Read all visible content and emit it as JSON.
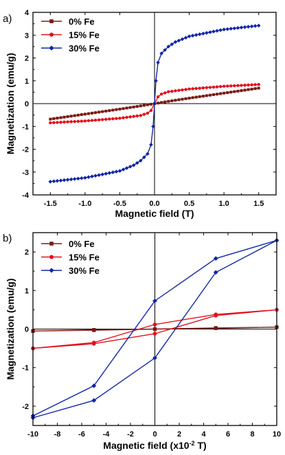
{
  "colors": {
    "s0": "#7a1a14",
    "s15": "#e3101d",
    "s30": "#1025a6"
  },
  "chart_data": [
    {
      "panel": "a)",
      "type": "line",
      "xlabel": "Magnetic field (T)",
      "ylabel": "Magnetization (emu/g)",
      "xlim": [
        -1.75,
        1.75
      ],
      "ylim": [
        -4,
        4
      ],
      "xticks": [
        "-1.5",
        "-1.0",
        "-0.5",
        "0.0",
        "0.5",
        "1.0",
        "1.5"
      ],
      "xtick_values": [
        -1.5,
        -1.0,
        -0.5,
        0.0,
        0.5,
        1.0,
        1.5
      ],
      "yticks": [
        "-4",
        "-3",
        "-2",
        "-1",
        "0",
        "1",
        "2",
        "3",
        "4"
      ],
      "ytick_values": [
        -4,
        -3,
        -2,
        -1,
        0,
        1,
        2,
        3,
        4
      ],
      "legend_position": "top-left",
      "series": [
        {
          "name": "0% Fe",
          "marker": "square",
          "color_key": "s0",
          "x": [
            -1.5,
            -1.0,
            -0.5,
            -0.2,
            0.0,
            0.2,
            0.5,
            1.0,
            1.5
          ],
          "y": [
            -0.68,
            -0.46,
            -0.24,
            -0.1,
            0.0,
            0.1,
            0.24,
            0.46,
            0.68
          ]
        },
        {
          "name": "15% Fe",
          "marker": "circle",
          "color_key": "s15",
          "x": [
            -1.5,
            -1.0,
            -0.5,
            -0.2,
            -0.1,
            -0.05,
            0.0,
            0.05,
            0.1,
            0.2,
            0.5,
            1.0,
            1.5
          ],
          "y": [
            -0.84,
            -0.76,
            -0.64,
            -0.52,
            -0.42,
            -0.3,
            0.0,
            0.3,
            0.42,
            0.52,
            0.64,
            0.76,
            0.84
          ]
        },
        {
          "name": "30% Fe",
          "marker": "diamond",
          "color_key": "s30",
          "x": [
            -1.5,
            -1.0,
            -0.5,
            -0.3,
            -0.2,
            -0.1,
            -0.05,
            -0.02,
            0.0,
            0.02,
            0.05,
            0.1,
            0.2,
            0.3,
            0.5,
            1.0,
            1.5
          ],
          "y": [
            -3.42,
            -3.25,
            -2.95,
            -2.7,
            -2.5,
            -2.2,
            -1.8,
            -1.0,
            0.0,
            1.0,
            1.8,
            2.2,
            2.5,
            2.7,
            2.95,
            3.25,
            3.42
          ]
        }
      ]
    },
    {
      "panel": "b)",
      "type": "line",
      "xlabel": "Magnetic field (x10-2 T)",
      "xlabel_main": "Magnetic field (x10",
      "xlabel_sup": "-2",
      "xlabel_end": " T)",
      "ylabel": "Magnetization (emu/g)",
      "xlim": [
        -10,
        10
      ],
      "ylim": [
        -2.5,
        2.5
      ],
      "xticks": [
        "-10",
        "-8",
        "-6",
        "-4",
        "-2",
        "0",
        "2",
        "4",
        "6",
        "8",
        "10"
      ],
      "xtick_values": [
        -10,
        -8,
        -6,
        -4,
        -2,
        0,
        2,
        4,
        6,
        8,
        10
      ],
      "yticks": [
        "-2",
        "-1",
        "0",
        "1",
        "2"
      ],
      "ytick_values": [
        -2,
        -1,
        0,
        1,
        2
      ],
      "legend_position": "top-left",
      "series": [
        {
          "name": "0% Fe",
          "marker": "square",
          "color_key": "s0",
          "x": [
            -10,
            -5,
            0,
            5,
            10,
            5,
            0,
            -5,
            -10
          ],
          "y": [
            -0.05,
            -0.03,
            0.0,
            0.02,
            0.05,
            0.03,
            0.0,
            -0.02,
            -0.05
          ]
        },
        {
          "name": "15% Fe",
          "marker": "circle",
          "color_key": "s15",
          "x": [
            -10,
            -5,
            0,
            5,
            10,
            5,
            0,
            -5,
            -10
          ],
          "y": [
            -0.5,
            -0.38,
            -0.12,
            0.35,
            0.5,
            0.38,
            0.12,
            -0.35,
            -0.5
          ]
        },
        {
          "name": "30% Fe",
          "marker": "diamond",
          "color_key": "s30",
          "x": [
            -10,
            -5,
            0,
            5,
            10,
            5,
            0,
            -5,
            -10
          ],
          "y": [
            -2.3,
            -1.85,
            -0.75,
            1.47,
            2.3,
            1.83,
            0.73,
            -1.47,
            -2.25
          ]
        }
      ]
    }
  ]
}
